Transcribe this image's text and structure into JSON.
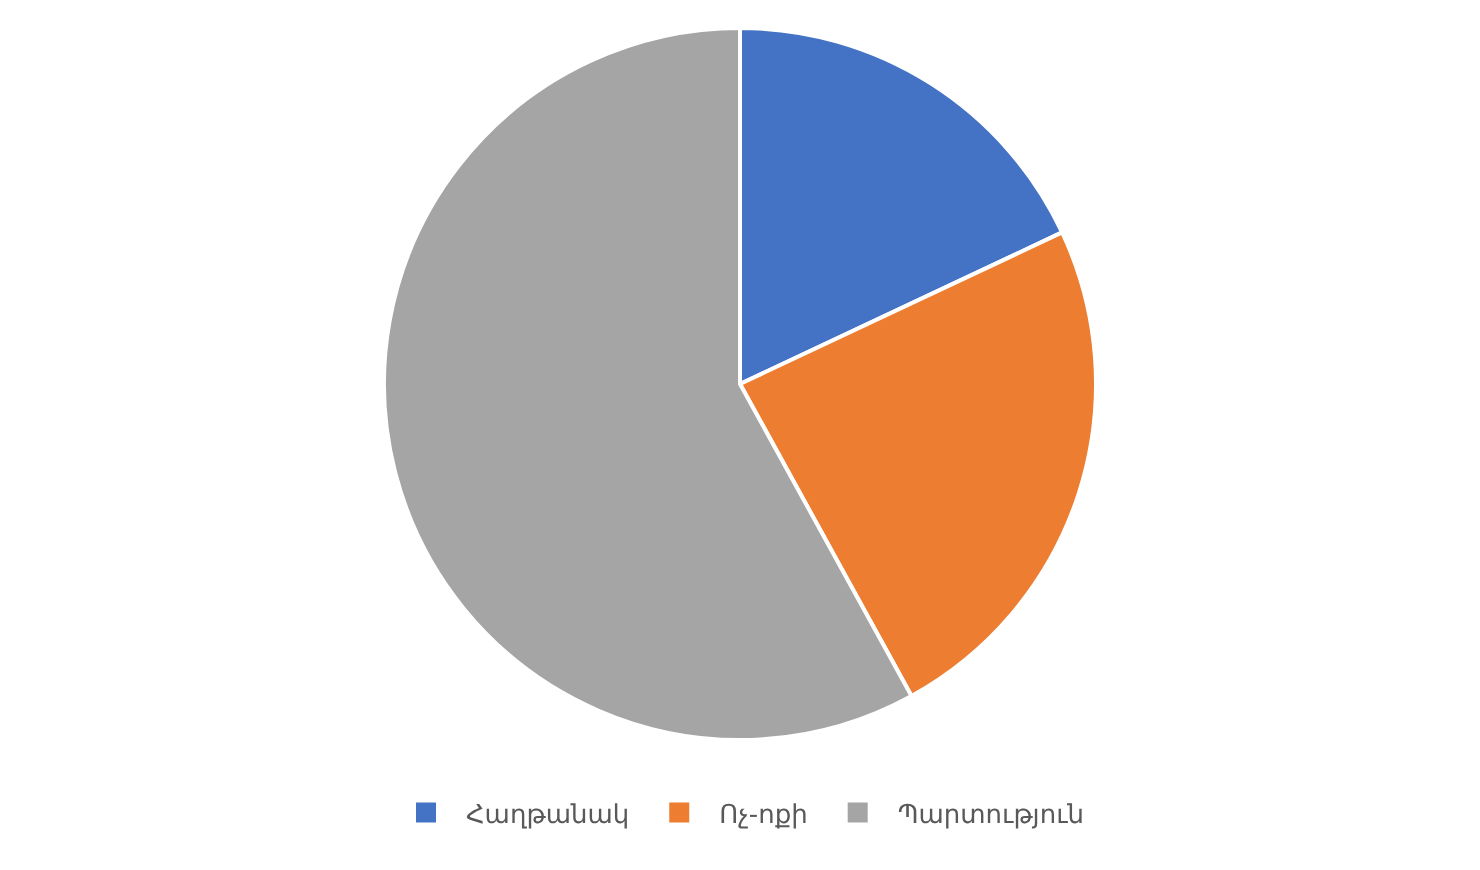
{
  "chart_data": {
    "type": "pie",
    "categories": [
      "Հաղթանակ",
      "Ոչ-ոքի",
      "Պարտություն"
    ],
    "values": [
      18,
      24,
      58
    ],
    "colors": [
      "#4472c4",
      "#ed7d31",
      "#a5a5a5"
    ],
    "legend": "bottom"
  }
}
